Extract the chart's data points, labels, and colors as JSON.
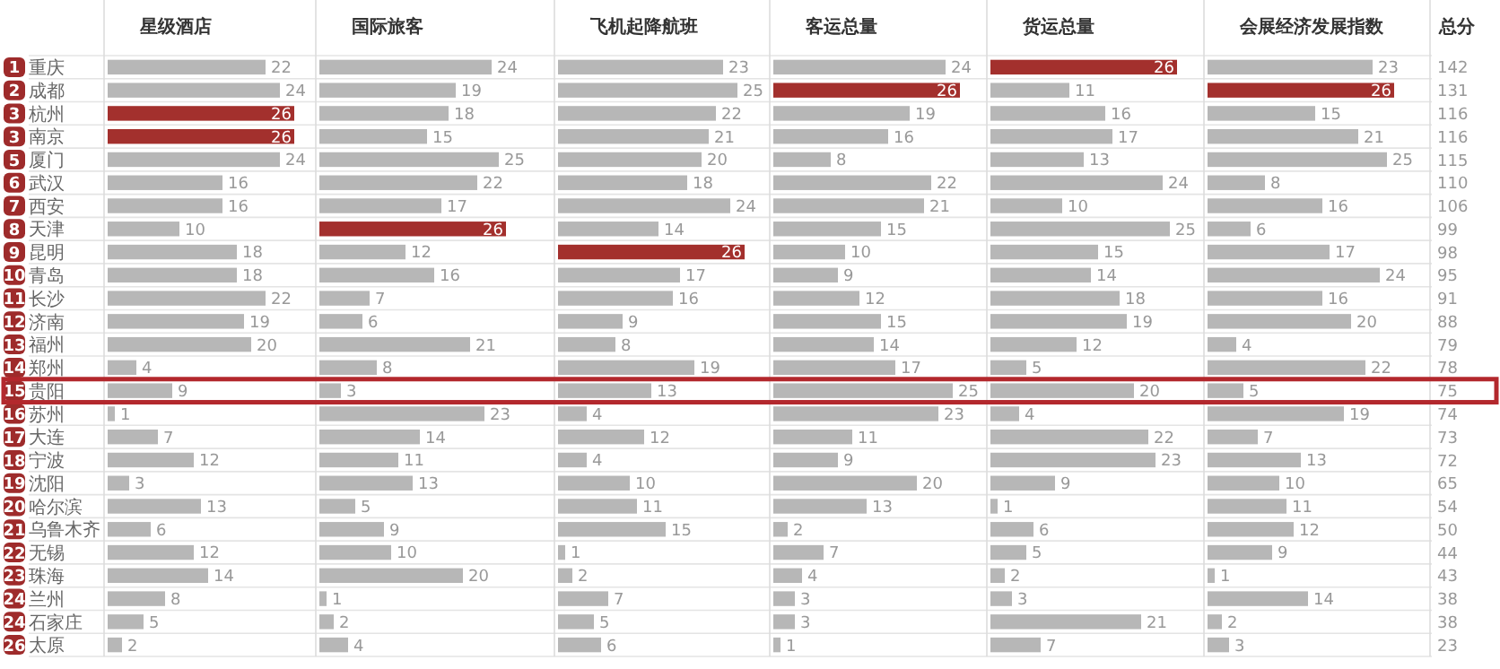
{
  "chart_data": [
    {
      "type": "other",
      "color": "#9e2b2b",
      "annotations": [
        "1",
        "2",
        "3",
        "3",
        "5",
        "6",
        "7",
        "8",
        "9",
        "10",
        "11",
        "12",
        "13",
        "14",
        "15",
        "16",
        "17",
        "18",
        "19",
        "20",
        "21",
        "22",
        "23",
        "24",
        "24",
        "26"
      ]
    },
    {
      "type": "bar",
      "orientation": "horizontal",
      "title": "星级酒店",
      "data_labels": true,
      "categories": [
        "重庆",
        "成都",
        "杭州",
        "南京",
        "厦门",
        "武汉",
        "西安",
        "天津",
        "昆明",
        "青岛",
        "长沙",
        "济南",
        "福州",
        "郑州",
        "贵阳",
        "苏州",
        "大连",
        "宁波",
        "沈阳",
        "哈尔滨",
        "乌鲁木齐",
        "无锡",
        "珠海",
        "兰州",
        "石家庄",
        "太原"
      ],
      "values": [
        22,
        24,
        26,
        26,
        24,
        16,
        16,
        10,
        18,
        18,
        22,
        19,
        20,
        4,
        9,
        1,
        7,
        12,
        3,
        13,
        6,
        12,
        14,
        8,
        5,
        2
      ],
      "colors": [
        "#b7b7b7",
        "#b7b7b7",
        "#a3302d",
        "#a3302d",
        "#b7b7b7",
        "#b7b7b7",
        "#b7b7b7",
        "#b7b7b7",
        "#b7b7b7",
        "#b7b7b7",
        "#b7b7b7",
        "#b7b7b7",
        "#b7b7b7",
        "#b7b7b7",
        "#b7b7b7",
        "#b7b7b7",
        "#b7b7b7",
        "#b7b7b7",
        "#b7b7b7",
        "#b7b7b7",
        "#b7b7b7",
        "#b7b7b7",
        "#b7b7b7",
        "#b7b7b7",
        "#b7b7b7",
        "#b7b7b7"
      ]
    },
    {
      "type": "bar",
      "orientation": "horizontal",
      "title": "国际旅客",
      "data_labels": true,
      "values": [
        24,
        19,
        18,
        15,
        25,
        22,
        17,
        26,
        12,
        16,
        7,
        6,
        21,
        8,
        3,
        23,
        14,
        11,
        13,
        5,
        9,
        10,
        20,
        1,
        2,
        4
      ],
      "colors": [
        "#b7b7b7",
        "#b7b7b7",
        "#b7b7b7",
        "#b7b7b7",
        "#b7b7b7",
        "#b7b7b7",
        "#b7b7b7",
        "#a3302d",
        "#b7b7b7",
        "#b7b7b7",
        "#b7b7b7",
        "#b7b7b7",
        "#b7b7b7",
        "#b7b7b7",
        "#b7b7b7",
        "#b7b7b7",
        "#b7b7b7",
        "#b7b7b7",
        "#b7b7b7",
        "#b7b7b7",
        "#b7b7b7",
        "#b7b7b7",
        "#b7b7b7",
        "#b7b7b7",
        "#b7b7b7",
        "#b7b7b7"
      ]
    },
    {
      "type": "bar",
      "orientation": "horizontal",
      "title": "飞机起降航班",
      "data_labels": true,
      "values": [
        23,
        25,
        22,
        21,
        20,
        18,
        24,
        14,
        26,
        17,
        16,
        9,
        8,
        19,
        13,
        4,
        12,
        4,
        10,
        11,
        15,
        1,
        2,
        7,
        5,
        6
      ],
      "colors": [
        "#b7b7b7",
        "#b7b7b7",
        "#b7b7b7",
        "#b7b7b7",
        "#b7b7b7",
        "#b7b7b7",
        "#b7b7b7",
        "#b7b7b7",
        "#a3302d",
        "#b7b7b7",
        "#b7b7b7",
        "#b7b7b7",
        "#b7b7b7",
        "#b7b7b7",
        "#b7b7b7",
        "#b7b7b7",
        "#b7b7b7",
        "#b7b7b7",
        "#b7b7b7",
        "#b7b7b7",
        "#b7b7b7",
        "#b7b7b7",
        "#b7b7b7",
        "#b7b7b7",
        "#b7b7b7",
        "#b7b7b7"
      ]
    },
    {
      "type": "bar",
      "orientation": "horizontal",
      "title": "客运总量",
      "data_labels": true,
      "values": [
        24,
        26,
        19,
        16,
        8,
        22,
        21,
        15,
        10,
        9,
        12,
        15,
        14,
        17,
        25,
        23,
        11,
        9,
        20,
        13,
        2,
        7,
        4,
        3,
        3,
        1
      ],
      "colors": [
        "#b7b7b7",
        "#a3302d",
        "#b7b7b7",
        "#b7b7b7",
        "#b7b7b7",
        "#b7b7b7",
        "#b7b7b7",
        "#b7b7b7",
        "#b7b7b7",
        "#b7b7b7",
        "#b7b7b7",
        "#b7b7b7",
        "#b7b7b7",
        "#b7b7b7",
        "#b7b7b7",
        "#b7b7b7",
        "#b7b7b7",
        "#b7b7b7",
        "#b7b7b7",
        "#b7b7b7",
        "#b7b7b7",
        "#b7b7b7",
        "#b7b7b7",
        "#b7b7b7",
        "#b7b7b7",
        "#b7b7b7"
      ]
    },
    {
      "type": "bar",
      "orientation": "horizontal",
      "title": "货运总量",
      "data_labels": true,
      "values": [
        26,
        11,
        16,
        17,
        13,
        24,
        10,
        25,
        15,
        14,
        18,
        19,
        12,
        5,
        20,
        4,
        22,
        23,
        9,
        1,
        6,
        5,
        2,
        3,
        21,
        7
      ],
      "colors": [
        "#a3302d",
        "#b7b7b7",
        "#b7b7b7",
        "#b7b7b7",
        "#b7b7b7",
        "#b7b7b7",
        "#b7b7b7",
        "#b7b7b7",
        "#b7b7b7",
        "#b7b7b7",
        "#b7b7b7",
        "#b7b7b7",
        "#b7b7b7",
        "#b7b7b7",
        "#b7b7b7",
        "#b7b7b7",
        "#b7b7b7",
        "#b7b7b7",
        "#b7b7b7",
        "#b7b7b7",
        "#b7b7b7",
        "#b7b7b7",
        "#b7b7b7",
        "#b7b7b7",
        "#b7b7b7",
        "#b7b7b7"
      ]
    },
    {
      "type": "bar",
      "orientation": "horizontal",
      "title": "会展经济发展指数",
      "data_labels": true,
      "values": [
        23,
        26,
        15,
        21,
        25,
        8,
        16,
        6,
        17,
        24,
        16,
        20,
        4,
        22,
        5,
        19,
        7,
        13,
        10,
        11,
        12,
        9,
        1,
        14,
        2,
        3
      ],
      "colors": [
        "#b7b7b7",
        "#a3302d",
        "#b7b7b7",
        "#b7b7b7",
        "#b7b7b7",
        "#b7b7b7",
        "#b7b7b7",
        "#b7b7b7",
        "#b7b7b7",
        "#b7b7b7",
        "#b7b7b7",
        "#b7b7b7",
        "#b7b7b7",
        "#b7b7b7",
        "#b7b7b7",
        "#b7b7b7",
        "#b7b7b7",
        "#b7b7b7",
        "#b7b7b7",
        "#b7b7b7",
        "#b7b7b7",
        "#b7b7b7",
        "#b7b7b7",
        "#b7b7b7",
        "#b7b7b7",
        "#b7b7b7"
      ]
    },
    {
      "type": "other",
      "title": "总分",
      "annotations": [
        "142",
        "131",
        "116",
        "116",
        "115",
        "110",
        "106",
        "99",
        "98",
        "95",
        "91",
        "88",
        "79",
        "78",
        "75",
        "74",
        "73",
        "72",
        "65",
        "54",
        "50",
        "44",
        "43",
        "38",
        "38",
        "23"
      ]
    }
  ]
}
